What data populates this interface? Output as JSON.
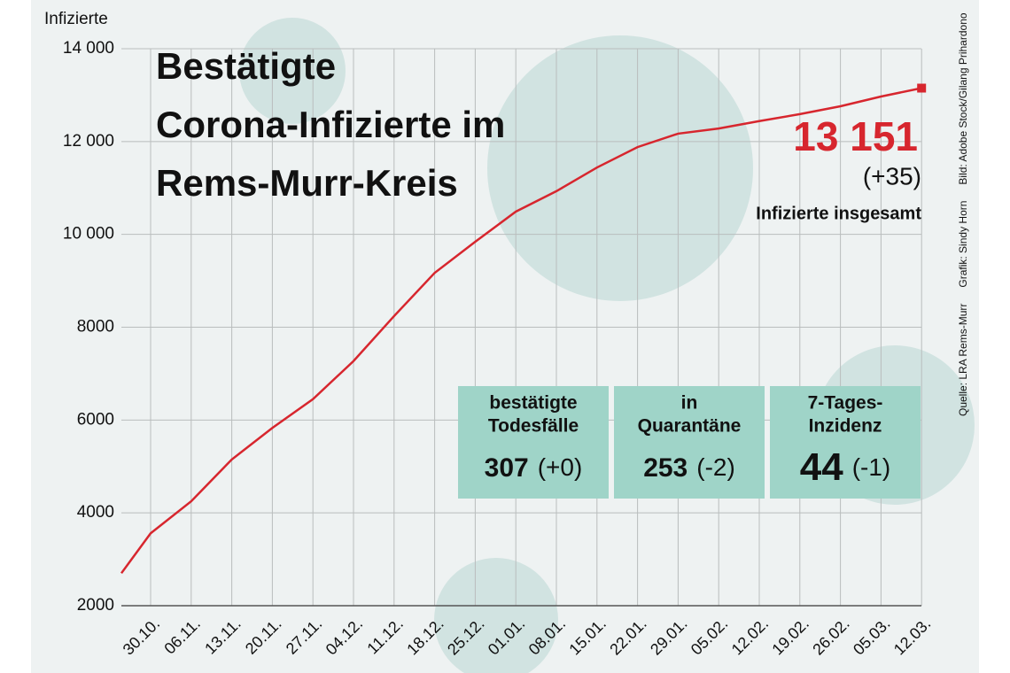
{
  "chart_data": {
    "type": "line",
    "title": [
      "Bestätigte",
      "Corona-Infizierte im",
      "Rems-Murr-Kreis"
    ],
    "y_label": "Infizierte",
    "categories": [
      null,
      "30.10.",
      "06.11.",
      "13.11.",
      "20.11.",
      "27.11.",
      "04.12.",
      "11.12.",
      "18.12.",
      "25.12.",
      "01.01.",
      "08.01.",
      "15.01.",
      "22.01.",
      "29.01.",
      "05.02.",
      "12.02.",
      "19.02.",
      "26.02.",
      "05.03.",
      "12.03."
    ],
    "series": [
      {
        "name": "Infizierte insgesamt",
        "color": "#d7262e",
        "values": [
          2700,
          3560,
          4250,
          5150,
          5830,
          6450,
          7270,
          8240,
          9170,
          9840,
          10490,
          10930,
          11440,
          11880,
          12170,
          12280,
          12440,
          12590,
          12760,
          12970,
          13151
        ]
      }
    ],
    "ylim": [
      2000,
      14000
    ],
    "yticks": [
      2000,
      4000,
      6000,
      8000,
      {
        "value": 10000,
        "label": "10 000"
      },
      {
        "value": 12000,
        "label": "12 000"
      },
      {
        "value": 14000,
        "label": "14 000"
      }
    ],
    "grid": true,
    "annotations": {
      "total": "13 151",
      "change": "(+35)",
      "label": "Infizierte insgesamt"
    },
    "boxes": [
      {
        "label": [
          "bestätigte",
          "Todesfälle"
        ],
        "value": "307",
        "change": "(+0)"
      },
      {
        "label": [
          "in",
          "Quarantäne"
        ],
        "value": "253",
        "change": "(-2)"
      },
      {
        "label": [
          "7-Tages-",
          "Inzidenz"
        ],
        "value": "44",
        "change": "(-1)"
      }
    ],
    "credits": [
      "Quelle: LRA Rems-Murr",
      "Grafik: Sindy Horn",
      "Bild: Adobe Stock/Gilang Prihardono"
    ]
  }
}
